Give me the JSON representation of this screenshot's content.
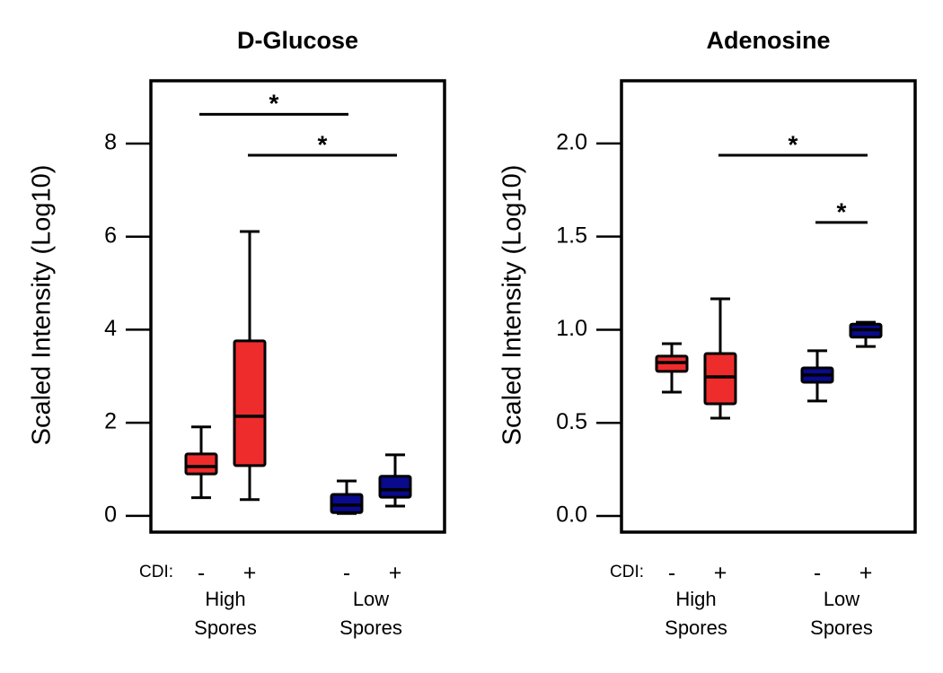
{
  "chart_data": [
    {
      "type": "box",
      "title": "D-Glucose",
      "y_label": "Scaled Intensity (Log10)",
      "ylim": [
        -0.35,
        9.35
      ],
      "yticks": [
        0,
        2,
        4,
        6,
        8
      ],
      "cdi_label": "CDI:",
      "categories": [
        "-",
        "+",
        "-",
        "+"
      ],
      "groups": [
        [
          "High",
          "Spores"
        ],
        [
          "Low",
          "Spores"
        ]
      ],
      "boxes": [
        {
          "color": "#ee2c2c",
          "min": 0.39,
          "q1": 0.9,
          "median": 1.06,
          "q3": 1.33,
          "max": 1.91
        },
        {
          "color": "#ee2c2c",
          "min": 0.35,
          "q1": 1.08,
          "median": 2.14,
          "q3": 3.76,
          "max": 6.11
        },
        {
          "color": "#0a0a8c",
          "min": 0.05,
          "q1": 0.07,
          "median": 0.23,
          "q3": 0.46,
          "max": 0.75
        },
        {
          "color": "#0a0a8c",
          "min": 0.21,
          "q1": 0.4,
          "median": 0.56,
          "q3": 0.85,
          "max": 1.31
        }
      ],
      "annotations": [
        {
          "label": "*",
          "from": 0,
          "to": 2,
          "y": 8.63
        },
        {
          "label": "*",
          "from": 1,
          "to": 3,
          "y": 7.75
        }
      ]
    },
    {
      "type": "box",
      "title": "Adenosine",
      "y_label": "Scaled Intensity (Log10)",
      "ylim": [
        -0.087,
        2.337
      ],
      "yticks": [
        {
          "value": 0,
          "label": "0.0"
        },
        {
          "value": 0.5,
          "label": "0.5"
        },
        {
          "value": 1,
          "label": "1.0"
        },
        {
          "value": 1.5,
          "label": "1.5"
        },
        {
          "value": 2,
          "label": "2.0"
        }
      ],
      "cdi_label": "CDI:",
      "categories": [
        "-",
        "+",
        "-",
        "+"
      ],
      "groups": [
        [
          "High",
          "Spores"
        ],
        [
          "Low",
          "Spores"
        ]
      ],
      "boxes": [
        {
          "color": "#ee2c2c",
          "min": 0.665,
          "q1": 0.776,
          "median": 0.824,
          "q3": 0.858,
          "max": 0.925
        },
        {
          "color": "#ee2c2c",
          "min": 0.525,
          "q1": 0.602,
          "median": 0.747,
          "q3": 0.872,
          "max": 1.166
        },
        {
          "color": "#0a0a8c",
          "min": 0.617,
          "q1": 0.718,
          "median": 0.757,
          "q3": 0.795,
          "max": 0.887
        },
        {
          "color": "#0a0a8c",
          "min": 0.91,
          "q1": 0.96,
          "median": 1.0,
          "q3": 1.03,
          "max": 1.04
        }
      ],
      "annotations": [
        {
          "label": "*",
          "from": 1,
          "to": 3,
          "y": 1.937
        },
        {
          "label": "*",
          "from": 2,
          "to": 3,
          "y": 1.576
        }
      ]
    }
  ]
}
